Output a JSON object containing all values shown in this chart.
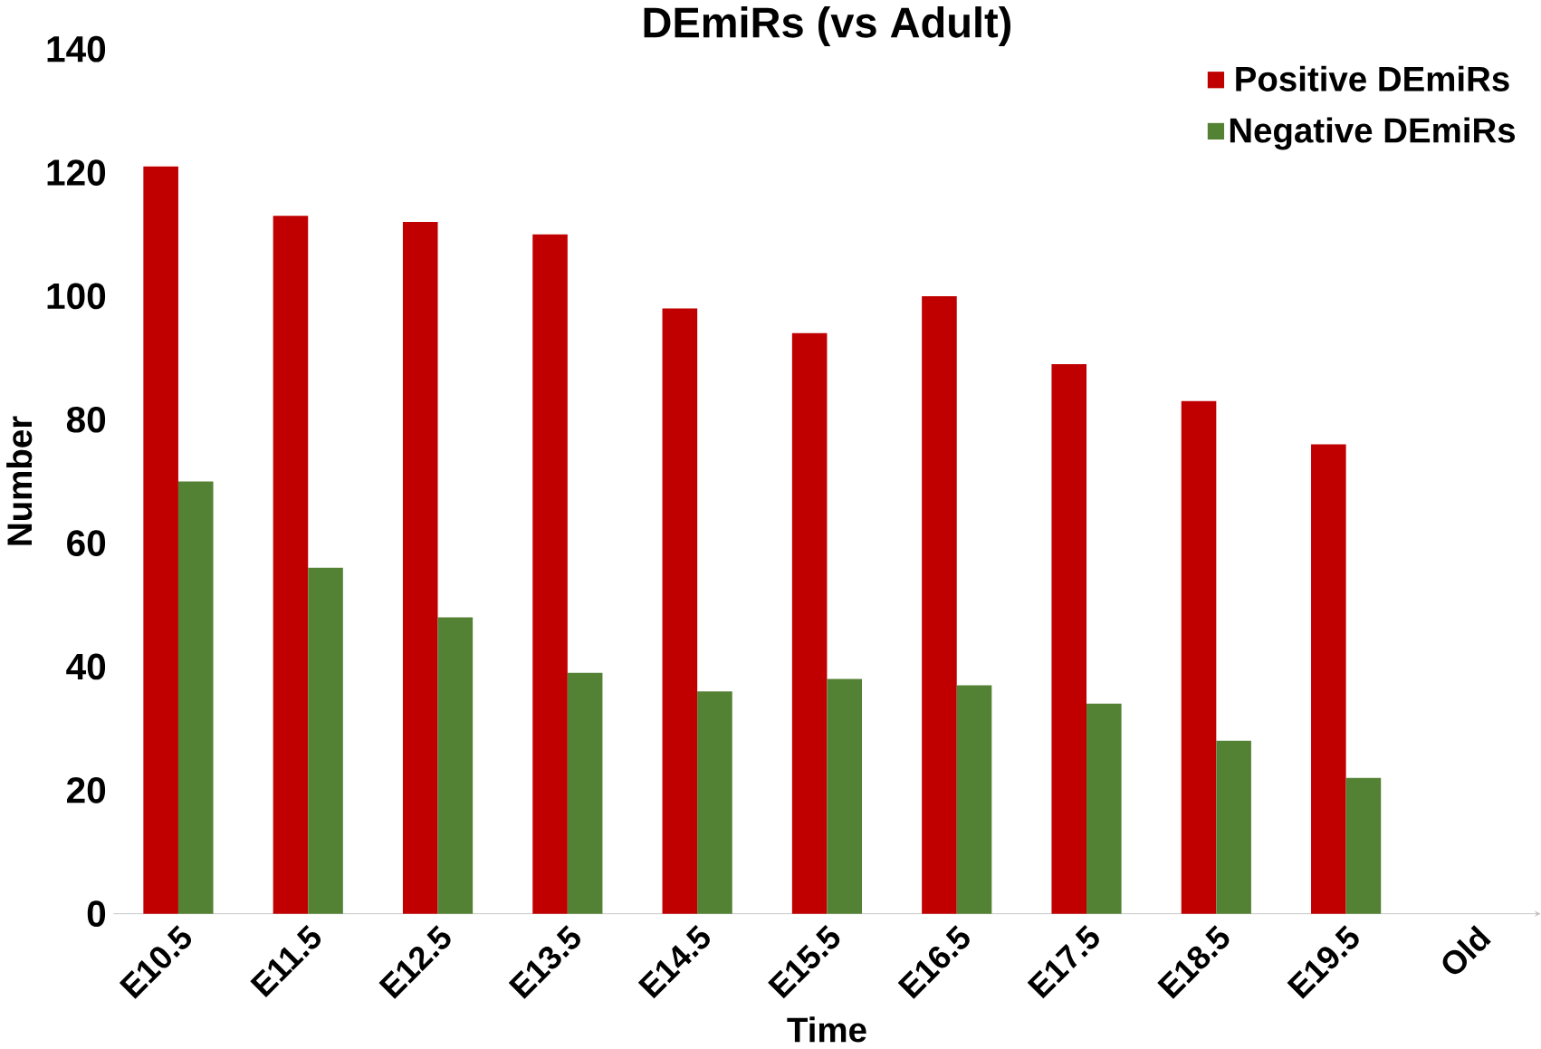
{
  "chart_data": {
    "type": "bar",
    "title": "DEmiRs (vs Adult)",
    "xlabel": "Time",
    "ylabel": "Number",
    "categories": [
      "E10.5",
      "E11.5",
      "E12.5",
      "E13.5",
      "E14.5",
      "E15.5",
      "E16.5",
      "E17.5",
      "E18.5",
      "E19.5",
      "Old"
    ],
    "series": [
      {
        "name": "Positive DEmiRs",
        "color": "#c00000",
        "values": [
          121,
          113,
          112,
          110,
          98,
          94,
          100,
          89,
          83,
          76,
          0
        ]
      },
      {
        "name": "Negative DEmiRs",
        "color": "#548235",
        "values": [
          70,
          56,
          48,
          39,
          36,
          38,
          37,
          34,
          28,
          22,
          0
        ]
      }
    ],
    "ylim": [
      0,
      140
    ],
    "yticks": [
      0,
      20,
      40,
      60,
      80,
      100,
      120,
      140
    ],
    "grid": false,
    "legend": "top right"
  }
}
